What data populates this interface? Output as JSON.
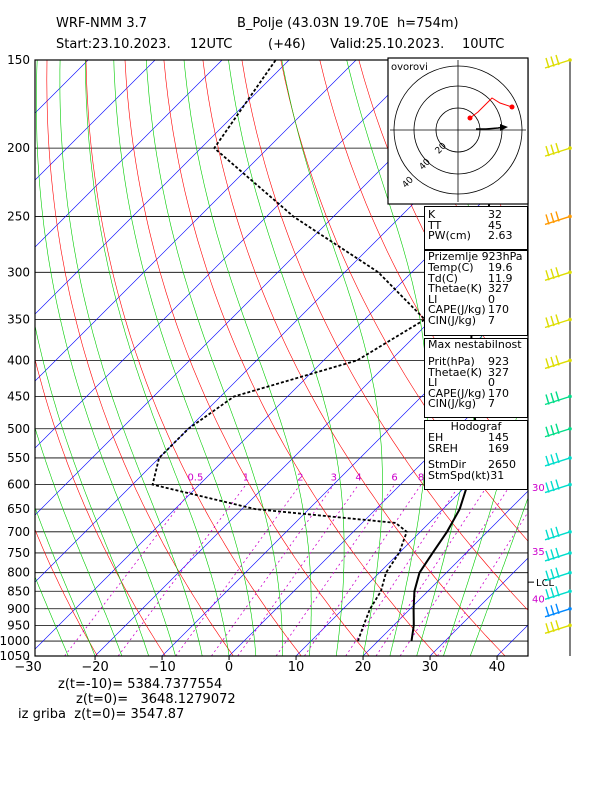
{
  "header": {
    "model": "WRF-NMM 3.7",
    "station": "B_Polje (43.03N 19.70E  h=754m)",
    "start": "Start:23.10.2023.",
    "start_hour": "12UTC",
    "lead": "(+46)",
    "valid": "Valid:25.10.2023.",
    "valid_hour": "10UTC"
  },
  "hodograph": {
    "label": "ovorovi",
    "ring_labels": [
      "40",
      "40",
      "20"
    ]
  },
  "panels": {
    "indices": [
      {
        "k": "K",
        "v": "32"
      },
      {
        "k": "TT",
        "v": "45"
      },
      {
        "k": "PW(cm)",
        "v": "2.63"
      }
    ],
    "surface": {
      "title": "Prizemlje 923hPa",
      "rows": [
        {
          "k": "Temp(C)",
          "v": "19.6"
        },
        {
          "k": "Td(C)",
          "v": "11.9"
        },
        {
          "k": "Thetae(K)",
          "v": "327"
        },
        {
          "k": "LI",
          "v": "0"
        },
        {
          "k": "CAPE(J/kg)",
          "v": "170"
        },
        {
          "k": "CIN(J/kg)",
          "v": "7"
        }
      ]
    },
    "max_instability": {
      "title": "Max nestabilnost",
      "rows": [
        {
          "k": "Prit(hPa)",
          "v": "923"
        },
        {
          "k": "Thetae(K)",
          "v": "327"
        },
        {
          "k": "LI",
          "v": "0"
        },
        {
          "k": "CAPE(J/kg)",
          "v": "170"
        },
        {
          "k": "CIN(J/kg)",
          "v": "7"
        }
      ]
    },
    "hodograf": {
      "title": "Hodograf",
      "rows": [
        {
          "k": "EH",
          "v": "145"
        },
        {
          "k": "SREH",
          "v": "169"
        },
        {
          "k": "StmDir",
          "v": "2650"
        },
        {
          "k": "StmSpd(kt)",
          "v": "31"
        }
      ]
    }
  },
  "footer": {
    "line1": "z(t=-10)= 5384.7377554",
    "line2": "z(t=0)=   3648.1279072",
    "line3": "iz griba  z(t=0)= 3547.87"
  },
  "colors": {
    "isotherm": "#0000ff",
    "dry_adiabat": "#ff0000",
    "moist_adiabat": "#00cc00",
    "mixing_ratio": "#cc00cc",
    "temperature": "#000000",
    "dewpoint": "#000000",
    "barb_colors": [
      "#dddd00",
      "#dddd00",
      "#ff9900",
      "#dddd00",
      "#dddd00",
      "#dddd00",
      "#00dd88",
      "#00dd88",
      "#00ddcc",
      "#00ddcc",
      "#00ddcc",
      "#00ddcc",
      "#00ddcc",
      "#00ddcc",
      "#0088ff"
    ]
  },
  "chart_data": {
    "type": "line",
    "title": "",
    "xlabel": "",
    "ylabel": "",
    "xlim": [
      -30,
      42
    ],
    "ylim": [
      1050,
      150
    ],
    "y_scale": "log",
    "x_ticks": [
      -30,
      -20,
      -10,
      0,
      10,
      20,
      30,
      40
    ],
    "pressure_ticks": [
      150,
      200,
      250,
      300,
      350,
      400,
      450,
      500,
      550,
      600,
      650,
      700,
      750,
      800,
      850,
      900,
      950,
      1000,
      1050
    ],
    "mixing_ratio_labels": [
      "0.5",
      "1",
      "2",
      "3",
      "4",
      "6",
      "8"
    ],
    "right_labels": [
      {
        "p": 605,
        "text": "30"
      },
      {
        "p": 745,
        "text": "35"
      },
      {
        "p": 825,
        "text": "LCL"
      },
      {
        "p": 870,
        "text": "40"
      }
    ],
    "series": [
      {
        "kind": "temperature",
        "points": [
          [
            1000,
            25
          ],
          [
            950,
            23
          ],
          [
            900,
            20.5
          ],
          [
            850,
            18
          ],
          [
            800,
            16
          ],
          [
            750,
            15
          ],
          [
            700,
            14
          ],
          [
            650,
            12.5
          ],
          [
            600,
            10
          ],
          [
            550,
            7
          ],
          [
            500,
            3
          ],
          [
            450,
            -2.5
          ],
          [
            400,
            -8
          ],
          [
            350,
            -14
          ],
          [
            300,
            -20
          ],
          [
            250,
            -27
          ],
          [
            200,
            -36
          ],
          [
            150,
            -46
          ]
        ]
      },
      {
        "kind": "dewpoint",
        "points": [
          [
            1000,
            17
          ],
          [
            950,
            15.5
          ],
          [
            900,
            14
          ],
          [
            850,
            13
          ],
          [
            800,
            11
          ],
          [
            750,
            10
          ],
          [
            700,
            8
          ],
          [
            680,
            5
          ],
          [
            650,
            -18
          ],
          [
            600,
            -37
          ],
          [
            550,
            -40
          ],
          [
            500,
            -40
          ],
          [
            450,
            -38
          ],
          [
            400,
            -25
          ],
          [
            350,
            -21
          ],
          [
            300,
            -35
          ],
          [
            250,
            -56
          ],
          [
            200,
            -78
          ],
          [
            150,
            -82
          ]
        ]
      }
    ],
    "winds": [
      {
        "p": 150
      },
      {
        "p": 200
      },
      {
        "p": 250
      },
      {
        "p": 300
      },
      {
        "p": 350
      },
      {
        "p": 400
      },
      {
        "p": 450
      },
      {
        "p": 500
      },
      {
        "p": 550
      },
      {
        "p": 600
      },
      {
        "p": 700
      },
      {
        "p": 750
      },
      {
        "p": 800
      },
      {
        "p": 850
      },
      {
        "p": 900
      },
      {
        "p": 950
      }
    ]
  }
}
